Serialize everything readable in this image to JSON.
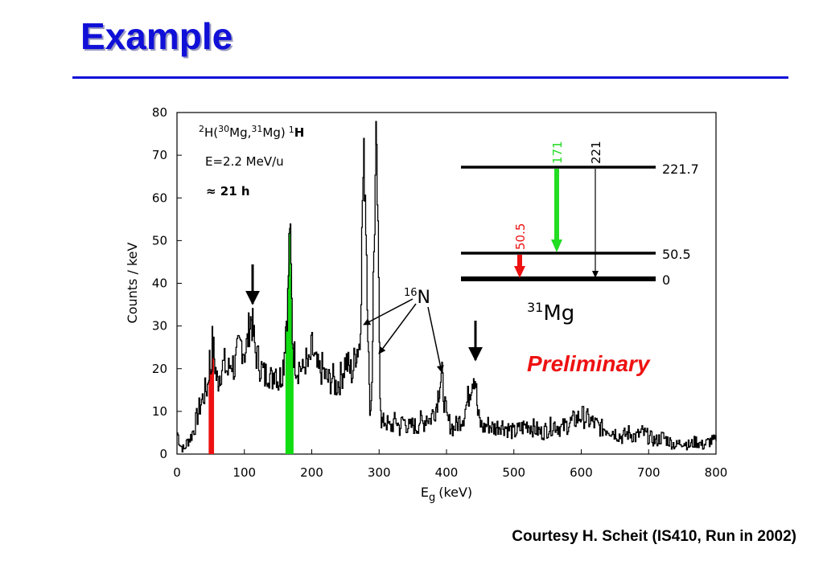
{
  "slide": {
    "title": "Example",
    "credit": "Courtesy H. Scheit (IS410, Run in 2002)"
  },
  "chart_data": {
    "type": "line",
    "xlabel_main": "E",
    "xlabel_sub": "g",
    "xlabel_unit": "(keV)",
    "ylabel": "Counts / keV",
    "xlim": [
      0,
      800
    ],
    "ylim": [
      0,
      80
    ],
    "xticks": [
      0,
      100,
      200,
      300,
      400,
      500,
      600,
      700,
      800
    ],
    "yticks": [
      0,
      10,
      20,
      30,
      40,
      50,
      60,
      70,
      80
    ],
    "grid": false,
    "annotations": {
      "reaction_sup1": "2",
      "reaction_a": "H(",
      "reaction_sup2": "30",
      "reaction_b": "Mg,",
      "reaction_sup3": "31",
      "reaction_c": "Mg)",
      "reaction_sup4": "1",
      "reaction_d": "H",
      "energy": "E=2.2 MeV/u",
      "duration": "≈ 21 h",
      "n16_sup": "16",
      "n16": "N",
      "preliminary": "Preliminary",
      "level_scheme_sup": "31",
      "level_scheme": "Mg"
    },
    "level_scheme": {
      "levels": [
        {
          "energy_label": "221.7",
          "energy": 221.7
        },
        {
          "energy_label": "50.5",
          "energy": 50.5
        },
        {
          "energy_label": "0",
          "energy": 0
        }
      ],
      "transitions": [
        {
          "label": "171",
          "color": "#22dd22"
        },
        {
          "label": "221",
          "color": "#000000"
        },
        {
          "label": "50.5",
          "color": "#ee1111"
        }
      ]
    },
    "highlight_colors": {
      "red_peak": "#ee1111",
      "green_peak": "#11dd11"
    },
    "series": [
      {
        "x": [
          0,
          5,
          10,
          15,
          20,
          25,
          30,
          35,
          40,
          45,
          48,
          50,
          52,
          54,
          56,
          58,
          60,
          62,
          65,
          70,
          75,
          80,
          85,
          90,
          95,
          100,
          104,
          107,
          110,
          113,
          116,
          120,
          125,
          130,
          135,
          140,
          145,
          150,
          155,
          158,
          161,
          164,
          167,
          169,
          171,
          173,
          175,
          178,
          182,
          186,
          190,
          195,
          200,
          205,
          210,
          215,
          220,
          225,
          230,
          235,
          240,
          245,
          250,
          255,
          260,
          265,
          268,
          271,
          273,
          275,
          277,
          279,
          281,
          283,
          285,
          287,
          289,
          291,
          293,
          295,
          297,
          299,
          301,
          303,
          305,
          308,
          312,
          316,
          320,
          325,
          330,
          335,
          340,
          345,
          350,
          355,
          360,
          365,
          370,
          375,
          380,
          384,
          387,
          390,
          393,
          396,
          400,
          405,
          410,
          415,
          420,
          425,
          430,
          434,
          437,
          440,
          443,
          446,
          450,
          455,
          460,
          470,
          480,
          490,
          500,
          510,
          520,
          530,
          540,
          550,
          560,
          570,
          580,
          590,
          600,
          610,
          620,
          630,
          640,
          650,
          660,
          670,
          680,
          690,
          700,
          710,
          720,
          730,
          740,
          750,
          760,
          770,
          780,
          790,
          800
        ],
        "y": [
          5,
          2,
          1,
          3,
          4,
          6,
          9,
          12,
          14,
          16,
          22,
          20,
          26,
          24,
          21,
          18,
          17,
          18,
          20,
          21,
          19,
          22,
          20,
          24,
          26,
          24,
          26,
          30,
          32,
          28,
          24,
          22,
          20,
          18,
          20,
          17,
          21,
          17,
          19,
          22,
          30,
          36,
          55,
          42,
          28,
          24,
          22,
          20,
          21,
          19,
          22,
          20,
          25,
          21,
          19,
          20,
          18,
          17,
          18,
          16,
          17,
          19,
          22,
          20,
          19,
          24,
          25,
          26,
          40,
          60,
          68,
          62,
          48,
          30,
          14,
          10,
          18,
          40,
          55,
          72,
          60,
          38,
          16,
          8,
          7,
          8,
          7,
          6,
          7,
          8,
          6,
          8,
          7,
          6,
          7,
          6,
          8,
          7,
          9,
          8,
          10,
          11,
          14,
          17,
          18,
          13,
          8,
          7,
          6,
          7,
          8,
          9,
          12,
          15,
          17,
          19,
          17,
          9,
          7,
          6,
          7,
          6,
          7,
          6,
          5,
          6,
          7,
          6,
          5,
          6,
          7,
          6,
          7,
          8,
          9,
          8,
          7,
          6,
          6,
          5,
          4,
          5,
          4,
          5,
          4,
          3,
          4,
          3,
          2,
          3,
          2,
          3,
          2,
          3,
          3
        ]
      }
    ]
  }
}
